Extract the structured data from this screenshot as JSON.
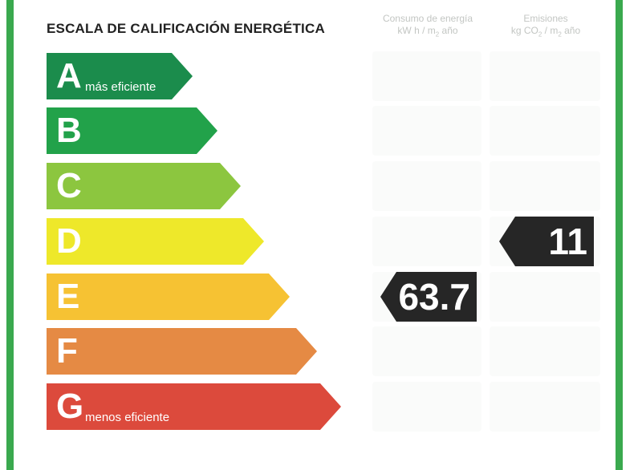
{
  "title": "ESCALA DE CALIFICACIÓN ENERGÉTICA",
  "columns": {
    "energy": {
      "line1": "Consumo de energía",
      "line2": "kW h / m",
      "sub": "2",
      "line2_end": " año"
    },
    "emissions": {
      "line1": "Emisiones",
      "line2": "kg CO",
      "sub": "2",
      "mid": " / m",
      "sub2": "2",
      "line2_end": " año"
    }
  },
  "bands": [
    {
      "letter": "A",
      "label": "más eficiente",
      "color": "#1b8c4c"
    },
    {
      "letter": "B",
      "label": "",
      "color": "#22a24a"
    },
    {
      "letter": "C",
      "label": "",
      "color": "#8cc63f"
    },
    {
      "letter": "D",
      "label": "",
      "color": "#eee82a"
    },
    {
      "letter": "E",
      "label": "",
      "color": "#f6c233"
    },
    {
      "letter": "F",
      "label": "",
      "color": "#e58a44"
    },
    {
      "letter": "G",
      "label": "menos eficiente",
      "color": "#dc4a3c"
    }
  ],
  "energy_rating": {
    "value": "63.7",
    "band": "E"
  },
  "emissions_rating": {
    "value": "11",
    "band": "D"
  },
  "colors": {
    "frame": "#3aa94e",
    "marker": "#262626"
  }
}
